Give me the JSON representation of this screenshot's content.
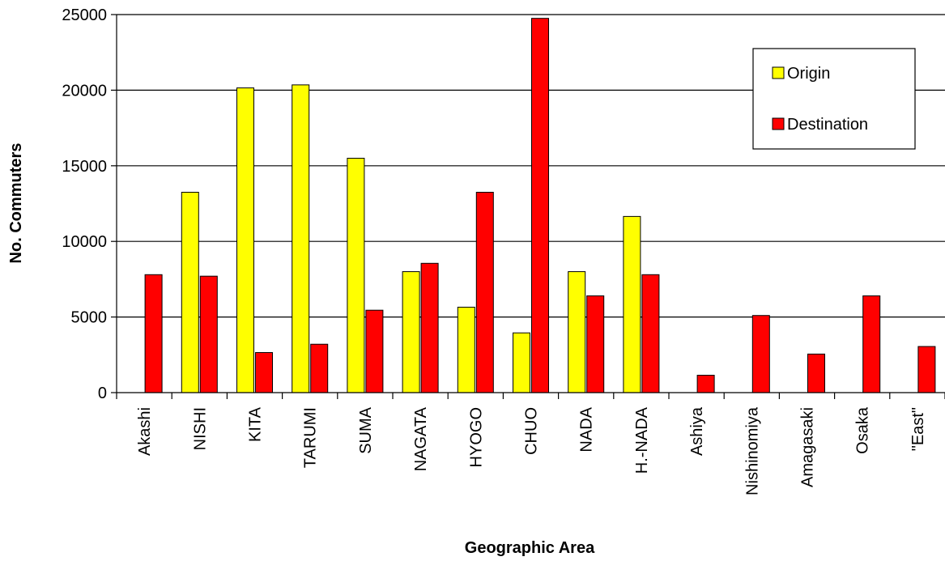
{
  "chart_data": {
    "type": "bar",
    "xlabel": "Geographic Area",
    "ylabel": "No. Commuters",
    "ylim": [
      0,
      25000
    ],
    "yticks": [
      0,
      5000,
      10000,
      15000,
      20000,
      25000
    ],
    "grid": "horizontal",
    "legend_position": "top-right",
    "categories": [
      "Akashi",
      "NISHI",
      "KITA",
      "TARUMI",
      "SUMA",
      "NAGATA",
      "HYOGO",
      "CHUO",
      "NADA",
      "H.-NADA",
      "Ashiya",
      "Nishinomiya",
      "Amagasaki",
      "Osaka",
      "\"East\""
    ],
    "series": [
      {
        "name": "Origin",
        "color": "#ffff00",
        "values": [
          0,
          13250,
          20150,
          20350,
          15500,
          8000,
          5650,
          3950,
          8000,
          11650,
          0,
          0,
          0,
          0,
          0
        ]
      },
      {
        "name": "Destination",
        "color": "#ff0000",
        "values": [
          7800,
          7700,
          2650,
          3200,
          5450,
          8550,
          13250,
          24750,
          6400,
          7800,
          1150,
          5100,
          2550,
          6400,
          3050
        ]
      }
    ]
  }
}
